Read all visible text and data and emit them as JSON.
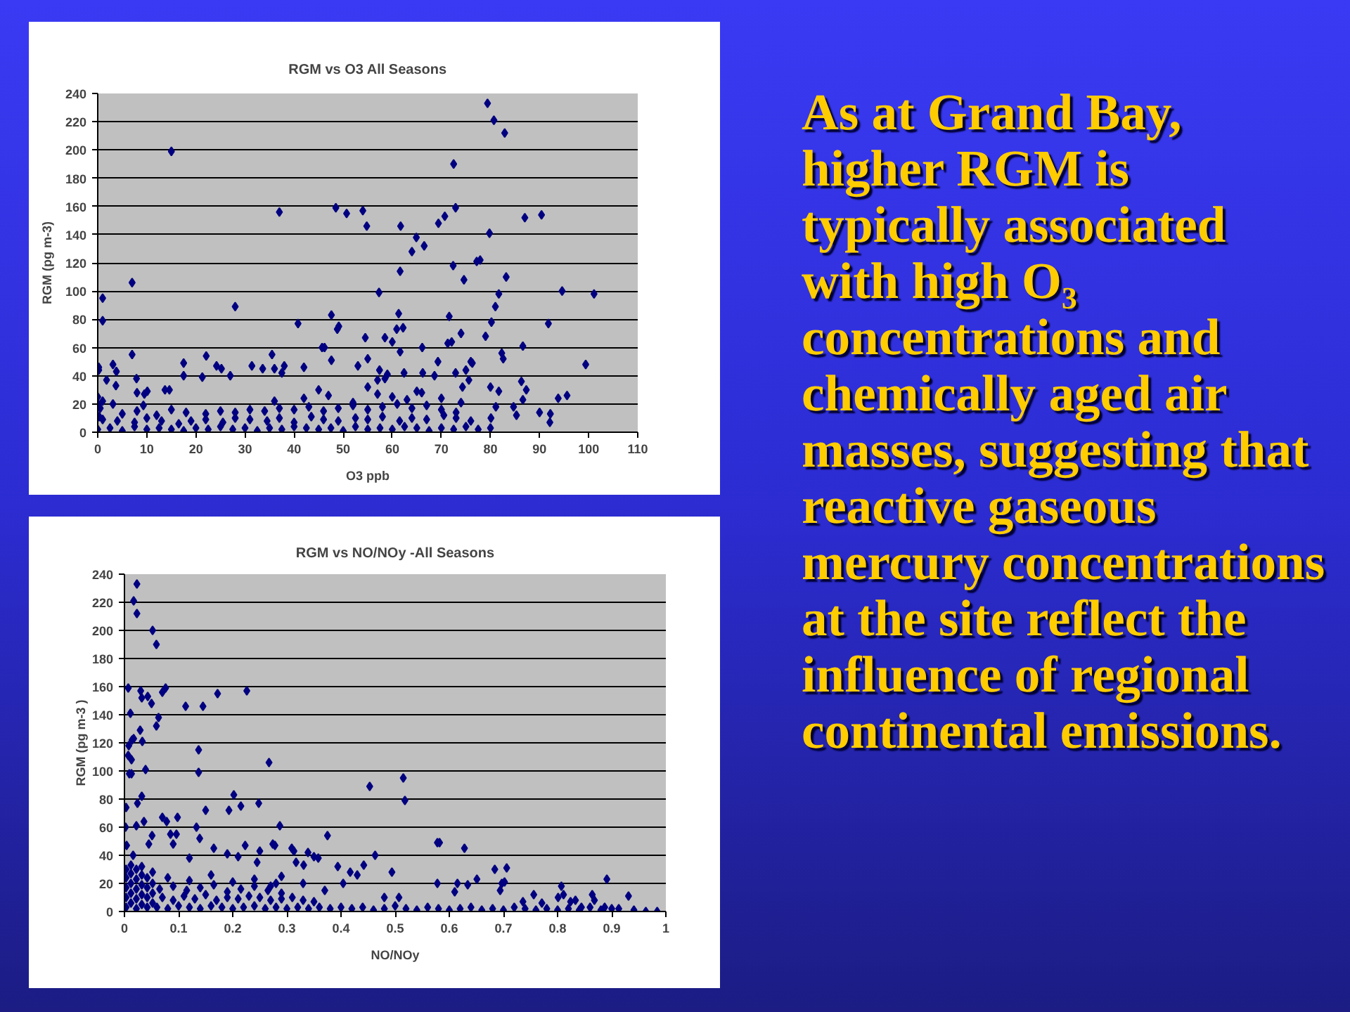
{
  "chart_data": [
    {
      "type": "scatter",
      "title": "RGM vs O3 All Seasons",
      "xlabel": "O3 ppb",
      "ylabel": "RGM (pg m-3)",
      "xlim": [
        0,
        110
      ],
      "xticks": [
        0,
        10,
        20,
        30,
        40,
        50,
        60,
        70,
        80,
        90,
        100,
        110
      ],
      "ylim": [
        0,
        240
      ],
      "yticks": [
        0,
        20,
        40,
        60,
        80,
        100,
        120,
        140,
        160,
        180,
        200,
        220,
        240
      ],
      "grid": "y",
      "marker": "diamond",
      "series": [
        {
          "color": "#000080",
          "x": [
            15,
            1,
            1,
            7,
            7,
            28,
            37,
            48.5,
            50.7,
            54,
            54.8,
            57.3,
            40.8,
            47.6,
            48.8,
            49.1,
            45.7,
            46.2,
            54.5,
            55,
            35.5,
            22.1,
            0.2,
            0.2,
            3.1,
            3.8,
            17.5,
            31.4,
            33.6,
            24.2,
            25.2,
            27,
            17.5,
            21.3,
            7.9,
            8,
            9.5,
            10.1,
            13.7,
            14.6,
            3.1,
            9.3,
            1.8,
            3.7,
            79.4,
            80.7,
            82.9,
            72.5,
            72.9,
            70.7,
            69.4,
            87,
            90.4,
            61.7,
            79.8,
            64.9,
            66.5,
            64,
            77.2,
            77.9,
            72.4,
            61.6,
            83.2,
            74.6,
            81.7,
            94.6,
            101.1,
            81,
            61.3,
            71.6,
            80.2,
            91.8,
            60.9,
            62.2,
            58.5,
            60,
            74,
            71.3,
            72.1,
            66.1,
            79,
            86.6,
            61.6,
            69.3,
            76,
            76.3,
            82.3,
            82.6,
            99.4,
            75,
            86.3,
            87.3,
            86.6,
            80,
            81.7,
            93.8,
            95.6,
            84.7,
            85.3,
            90,
            92.2,
            92.1,
            80.1,
            81.1,
            36,
            37.5,
            38,
            42,
            47.6,
            53,
            57,
            59,
            57.4,
            58.5,
            62.4,
            66.2,
            68.6,
            72.9,
            74.3,
            75.6,
            0,
            2.5,
            5,
            7.5,
            10,
            12.5,
            15,
            17.5,
            20,
            22.5,
            25,
            27.5,
            30,
            32.5,
            35,
            37.5,
            40,
            42.5,
            45,
            47.5,
            50,
            52.5,
            55,
            57.5,
            60,
            62.5,
            65,
            67.5,
            70,
            72.5,
            75,
            77.5,
            80,
            1,
            4,
            7.5,
            10,
            13,
            16.5,
            19,
            22,
            25.5,
            28,
            31,
            34.5,
            37,
            40,
            43.5,
            46,
            49,
            52.5,
            55,
            58,
            61.5,
            64,
            67,
            70.5,
            73,
            76,
            22,
            25,
            28,
            31,
            34,
            37,
            40,
            43,
            46,
            49,
            52,
            55,
            58,
            61,
            64,
            67,
            70,
            73,
            36,
            42,
            47,
            52,
            57,
            60,
            63,
            66,
            70,
            74,
            45,
            55,
            65,
            0,
            0,
            0.5,
            1,
            0.3,
            12,
            15,
            18,
            5,
            8
          ],
          "values": [
            199,
            95,
            79,
            106,
            55,
            89,
            156,
            159,
            155,
            157,
            146,
            99,
            77,
            83,
            73,
            75,
            60,
            60,
            67,
            52,
            55,
            54,
            44,
            46,
            48,
            43,
            49,
            47,
            45,
            47,
            45,
            40,
            40,
            39,
            38,
            28,
            27,
            29,
            30,
            30,
            20,
            19,
            37,
            33,
            233,
            221,
            212,
            190,
            159,
            153,
            148,
            152,
            154,
            146,
            141,
            138,
            132,
            128,
            121,
            122,
            118,
            114,
            110,
            108,
            98,
            100,
            98,
            89,
            84,
            82,
            78,
            77,
            73,
            74,
            67,
            64,
            70,
            63,
            64,
            60,
            68,
            61,
            57,
            50,
            50,
            49,
            56,
            52,
            48,
            44,
            36,
            30,
            23,
            32,
            29,
            24,
            26,
            18,
            12,
            14,
            13,
            7,
            10,
            18,
            45,
            42,
            47,
            46,
            51,
            47,
            37,
            41,
            44,
            38,
            42,
            42,
            40,
            42,
            32,
            37,
            2,
            3,
            1,
            4,
            2,
            3,
            2,
            1,
            3,
            2,
            4,
            2,
            3,
            1,
            3,
            2,
            4,
            3,
            2,
            3,
            1,
            4,
            2,
            3,
            2,
            4,
            3,
            1,
            3,
            2,
            4,
            2,
            3,
            9,
            8,
            7,
            10,
            8,
            6,
            8,
            9,
            7,
            10,
            9,
            8,
            10,
            7,
            11,
            9,
            8,
            10,
            9,
            11,
            8,
            10,
            9,
            12,
            10,
            8,
            13,
            15,
            14,
            16,
            15,
            17,
            16,
            18,
            15,
            17,
            19,
            16,
            18,
            20,
            17,
            19,
            16,
            14,
            22,
            24,
            26,
            21,
            27,
            25,
            23,
            28,
            24,
            21,
            30,
            32,
            29,
            20,
            25,
            17,
            22,
            11,
            12,
            16,
            14,
            13,
            15
          ]
        }
      ]
    },
    {
      "type": "scatter",
      "title": "RGM vs NO/NOy -All Seasons",
      "xlabel": "NO/NOy",
      "ylabel": "RGM (pg m-3 )",
      "xlim": [
        0,
        1
      ],
      "xticks": [
        0,
        0.1,
        0.2,
        0.3,
        0.4,
        0.5,
        0.6,
        0.7,
        0.8,
        0.9,
        1
      ],
      "ylim": [
        0,
        240
      ],
      "yticks": [
        0,
        20,
        40,
        60,
        80,
        100,
        120,
        140,
        160,
        180,
        200,
        220,
        240
      ],
      "grid": "y",
      "marker": "diamond",
      "series": [
        {
          "color": "#000080",
          "x": [
            0.023,
            0.017,
            0.023,
            0.052,
            0.059,
            0.007,
            0.03,
            0.032,
            0.043,
            0.05,
            0.07,
            0.076,
            0.011,
            0.063,
            0.059,
            0.029,
            0.014,
            0.008,
            0.017,
            0.033,
            0.007,
            0.013,
            0.009,
            0.013,
            0.039,
            0.113,
            0.145,
            0.172,
            0.226,
            0.137,
            0.137,
            0.267,
            0.003,
            0.002,
            0.032,
            0.024,
            0.036,
            0.022,
            0.07,
            0.098,
            0.078,
            0.085,
            0.096,
            0.051,
            0.133,
            0.139,
            0.15,
            0.202,
            0.193,
            0.215,
            0.248,
            0.287,
            0.274,
            0.278,
            0.223,
            0.25,
            0.309,
            0.313,
            0.339,
            0.35,
            0.358,
            0.375,
            0.394,
            0.404,
            0.417,
            0.43,
            0.442,
            0.453,
            0.463,
            0.317,
            0.331,
            0.515,
            0.518,
            0.494,
            0.578,
            0.582,
            0.628,
            0.578,
            0.615,
            0.634,
            0.651,
            0.61,
            0.684,
            0.706,
            0.697,
            0.702,
            0.694,
            0.507,
            0.48,
            0.756,
            0.736,
            0.807,
            0.811,
            0.801,
            0.824,
            0.833,
            0.864,
            0.868,
            0.891,
            0.931,
            0.887,
            0.913,
            0.941,
            0.963,
            0.984,
            0.771,
            0.844,
            0.004,
            0.016,
            0.045,
            0.09,
            0.12,
            0.165,
            0.19,
            0.21,
            0.245,
            0.29,
            0.33,
            0.37,
            0.27,
            0.003,
            0.003,
            0.003,
            0.003,
            0.003,
            0.012,
            0.012,
            0.012,
            0.012,
            0.012,
            0.022,
            0.022,
            0.022,
            0.022,
            0.022,
            0.032,
            0.032,
            0.032,
            0.032,
            0.032,
            0.042,
            0.042,
            0.042,
            0.042,
            0.052,
            0.052,
            0.052,
            0.052,
            0.06,
            0.08,
            0.1,
            0.12,
            0.14,
            0.16,
            0.18,
            0.2,
            0.22,
            0.24,
            0.26,
            0.28,
            0.3,
            0.32,
            0.34,
            0.36,
            0.38,
            0.4,
            0.07,
            0.09,
            0.11,
            0.13,
            0.15,
            0.17,
            0.19,
            0.21,
            0.23,
            0.25,
            0.27,
            0.29,
            0.31,
            0.33,
            0.35,
            0.065,
            0.09,
            0.115,
            0.14,
            0.165,
            0.19,
            0.215,
            0.24,
            0.265,
            0.29,
            0.08,
            0.12,
            0.16,
            0.2,
            0.24,
            0.28,
            0.42,
            0.44,
            0.46,
            0.48,
            0.5,
            0.52,
            0.54,
            0.56,
            0.58,
            0.6,
            0.62,
            0.64,
            0.66,
            0.68,
            0.7,
            0.72,
            0.74,
            0.76,
            0.78,
            0.8,
            0.82,
            0.84,
            0.86,
            0.88,
            0.9
          ],
          "values": [
            233,
            221,
            212,
            200,
            190,
            159,
            157,
            152,
            153,
            148,
            156,
            159,
            141,
            138,
            132,
            129,
            122,
            118,
            123,
            121,
            111,
            108,
            98,
            98,
            101,
            146,
            146,
            155,
            157,
            115,
            99,
            106,
            74,
            60,
            82,
            77,
            64,
            61,
            67,
            67,
            64,
            55,
            55,
            54,
            60,
            52,
            72,
            83,
            72,
            75,
            77,
            61,
            48,
            47,
            47,
            43,
            45,
            43,
            42,
            39,
            38,
            54,
            32,
            20,
            28,
            26,
            33,
            89,
            40,
            35,
            33,
            95,
            79,
            28,
            49,
            49,
            45,
            20,
            20,
            19,
            23,
            14,
            30,
            31,
            20,
            21,
            15,
            10,
            10,
            12,
            7,
            18,
            12,
            10,
            7,
            8,
            12,
            8,
            23,
            11,
            3,
            2,
            1,
            0,
            0,
            6,
            3,
            47,
            40,
            48,
            48,
            38,
            45,
            41,
            39,
            35,
            25,
            20,
            15,
            18,
            3,
            10,
            17,
            24,
            30,
            6,
            13,
            20,
            27,
            33,
            2,
            9,
            16,
            23,
            30,
            5,
            12,
            19,
            26,
            32,
            3,
            10,
            17,
            24,
            6,
            13,
            20,
            28,
            3,
            2,
            4,
            3,
            2,
            4,
            3,
            2,
            3,
            4,
            2,
            3,
            2,
            3,
            2,
            3,
            2,
            3,
            10,
            8,
            11,
            9,
            12,
            8,
            10,
            9,
            11,
            10,
            8,
            9,
            10,
            8,
            7,
            16,
            18,
            15,
            17,
            19,
            14,
            16,
            18,
            15,
            13,
            24,
            22,
            26,
            21,
            23,
            20,
            2,
            3,
            1,
            2,
            4,
            2,
            1,
            3,
            2,
            1,
            2,
            3,
            1,
            2,
            1,
            3,
            2,
            1,
            2,
            1,
            2,
            1,
            3,
            1,
            2
          ]
        }
      ]
    },
    {
      "type": "other",
      "annotations": [
        "As at Grand Bay,",
        "higher RGM is",
        "typically associated",
        "with high O₃",
        "concentrations and",
        "chemically aged air",
        "masses, suggesting that",
        "reactive gaseous",
        "mercury concentrations",
        "at the site reflect the",
        "influence of regional",
        "continental emissions."
      ]
    }
  ]
}
